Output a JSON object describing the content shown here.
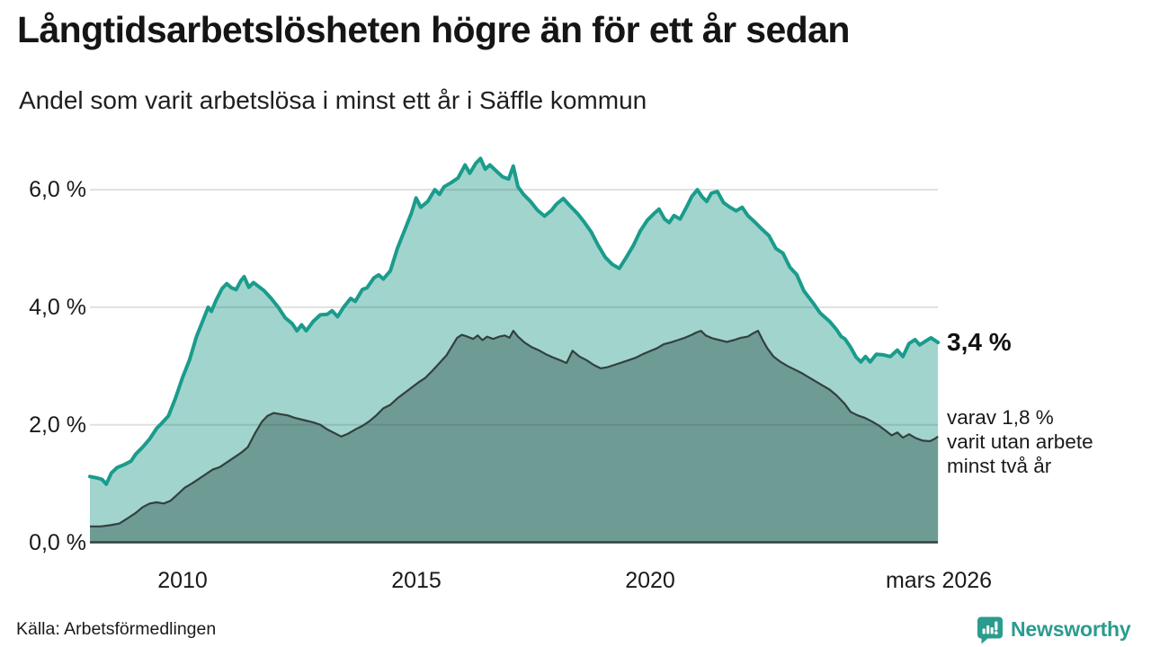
{
  "header": {
    "title": "Långtidsarbetslösheten högre än för ett år sedan",
    "subtitle": "Andel som varit arbetslösa i minst ett år i Säffle kommun"
  },
  "annotations": {
    "value_label": "3,4 %",
    "detail_line1": "varav 1,8 %",
    "detail_line2": "varit utan arbete",
    "detail_line3": "minst två år"
  },
  "footer": {
    "source_label": "Källa: Arbetsförmedlingen",
    "brand_name": "Newsworthy"
  },
  "colors": {
    "teal_line": "#1a9c8c",
    "teal_fill": "#a1d4cd",
    "dark_line": "#32413f",
    "dark_fill": "#6f9b95",
    "grid": "rgba(60,60,60,0.16)",
    "baseline": "#33403e",
    "brand": "#2a9c8e",
    "text": "#1a1a1a"
  },
  "chart_data": {
    "type": "area",
    "title": "Långtidsarbetslösheten högre än för ett år sedan",
    "subtitle": "Andel som varit arbetslösa i minst ett år i Säffle kommun",
    "source": "Källa: Arbetsförmedlingen",
    "legend_position": "none",
    "grid": true,
    "x_axis": {
      "ticks": [
        "2010",
        "2015",
        "2020",
        "mars 2026"
      ],
      "tick_years": [
        2010,
        2015,
        2020,
        2026.17
      ],
      "range": [
        2008.02,
        2026.17
      ]
    },
    "y_axis": {
      "ticks": [
        "0,0 %",
        "2,0 %",
        "4,0 %",
        "6,0 %"
      ],
      "tick_values": [
        0,
        2,
        4,
        6
      ],
      "unit": "%",
      "range": [
        0,
        6.6
      ]
    },
    "series": [
      {
        "name": "Andel arbetslösa minst ett år",
        "end_label": "3,4 %",
        "end_value": 3.4,
        "points": [
          [
            2008.02,
            1.12
          ],
          [
            2008.15,
            1.1
          ],
          [
            2008.28,
            1.07
          ],
          [
            2008.37,
            0.99
          ],
          [
            2008.48,
            1.18
          ],
          [
            2008.6,
            1.27
          ],
          [
            2008.75,
            1.32
          ],
          [
            2008.9,
            1.38
          ],
          [
            2009.0,
            1.5
          ],
          [
            2009.15,
            1.62
          ],
          [
            2009.3,
            1.76
          ],
          [
            2009.45,
            1.94
          ],
          [
            2009.55,
            2.02
          ],
          [
            2009.7,
            2.15
          ],
          [
            2009.85,
            2.45
          ],
          [
            2010.0,
            2.8
          ],
          [
            2010.15,
            3.1
          ],
          [
            2010.3,
            3.5
          ],
          [
            2010.45,
            3.8
          ],
          [
            2010.55,
            4.0
          ],
          [
            2010.62,
            3.93
          ],
          [
            2010.72,
            4.12
          ],
          [
            2010.85,
            4.32
          ],
          [
            2010.95,
            4.4
          ],
          [
            2011.05,
            4.33
          ],
          [
            2011.15,
            4.3
          ],
          [
            2011.25,
            4.45
          ],
          [
            2011.32,
            4.52
          ],
          [
            2011.42,
            4.34
          ],
          [
            2011.52,
            4.42
          ],
          [
            2011.62,
            4.36
          ],
          [
            2011.75,
            4.28
          ],
          [
            2011.9,
            4.15
          ],
          [
            2012.05,
            4.0
          ],
          [
            2012.2,
            3.82
          ],
          [
            2012.35,
            3.72
          ],
          [
            2012.45,
            3.6
          ],
          [
            2012.55,
            3.7
          ],
          [
            2012.65,
            3.6
          ],
          [
            2012.8,
            3.76
          ],
          [
            2012.95,
            3.87
          ],
          [
            2013.1,
            3.88
          ],
          [
            2013.2,
            3.94
          ],
          [
            2013.32,
            3.84
          ],
          [
            2013.45,
            4.0
          ],
          [
            2013.6,
            4.15
          ],
          [
            2013.7,
            4.1
          ],
          [
            2013.85,
            4.3
          ],
          [
            2013.95,
            4.33
          ],
          [
            2014.1,
            4.5
          ],
          [
            2014.2,
            4.55
          ],
          [
            2014.3,
            4.48
          ],
          [
            2014.45,
            4.62
          ],
          [
            2014.6,
            5.0
          ],
          [
            2014.75,
            5.3
          ],
          [
            2014.9,
            5.6
          ],
          [
            2015.0,
            5.86
          ],
          [
            2015.1,
            5.7
          ],
          [
            2015.25,
            5.8
          ],
          [
            2015.4,
            6.0
          ],
          [
            2015.5,
            5.92
          ],
          [
            2015.6,
            6.05
          ],
          [
            2015.75,
            6.12
          ],
          [
            2015.9,
            6.2
          ],
          [
            2016.05,
            6.42
          ],
          [
            2016.15,
            6.28
          ],
          [
            2016.28,
            6.45
          ],
          [
            2016.38,
            6.53
          ],
          [
            2016.48,
            6.35
          ],
          [
            2016.58,
            6.42
          ],
          [
            2016.7,
            6.33
          ],
          [
            2016.85,
            6.22
          ],
          [
            2016.98,
            6.18
          ],
          [
            2017.08,
            6.4
          ],
          [
            2017.18,
            6.05
          ],
          [
            2017.3,
            5.92
          ],
          [
            2017.45,
            5.8
          ],
          [
            2017.6,
            5.65
          ],
          [
            2017.75,
            5.55
          ],
          [
            2017.9,
            5.65
          ],
          [
            2018.0,
            5.75
          ],
          [
            2018.15,
            5.85
          ],
          [
            2018.3,
            5.72
          ],
          [
            2018.45,
            5.6
          ],
          [
            2018.6,
            5.45
          ],
          [
            2018.75,
            5.28
          ],
          [
            2018.9,
            5.05
          ],
          [
            2019.05,
            4.85
          ],
          [
            2019.2,
            4.73
          ],
          [
            2019.35,
            4.66
          ],
          [
            2019.5,
            4.85
          ],
          [
            2019.65,
            5.05
          ],
          [
            2019.8,
            5.3
          ],
          [
            2019.95,
            5.48
          ],
          [
            2020.1,
            5.6
          ],
          [
            2020.2,
            5.67
          ],
          [
            2020.32,
            5.5
          ],
          [
            2020.42,
            5.44
          ],
          [
            2020.52,
            5.56
          ],
          [
            2020.65,
            5.5
          ],
          [
            2020.8,
            5.72
          ],
          [
            2020.9,
            5.88
          ],
          [
            2021.02,
            6.0
          ],
          [
            2021.12,
            5.88
          ],
          [
            2021.22,
            5.8
          ],
          [
            2021.32,
            5.94
          ],
          [
            2021.45,
            5.97
          ],
          [
            2021.58,
            5.78
          ],
          [
            2021.72,
            5.7
          ],
          [
            2021.85,
            5.64
          ],
          [
            2021.98,
            5.7
          ],
          [
            2022.1,
            5.56
          ],
          [
            2022.25,
            5.45
          ],
          [
            2022.4,
            5.33
          ],
          [
            2022.55,
            5.22
          ],
          [
            2022.7,
            5.0
          ],
          [
            2022.85,
            4.92
          ],
          [
            2023.0,
            4.68
          ],
          [
            2023.15,
            4.55
          ],
          [
            2023.3,
            4.28
          ],
          [
            2023.5,
            4.07
          ],
          [
            2023.65,
            3.9
          ],
          [
            2023.85,
            3.76
          ],
          [
            2024.0,
            3.62
          ],
          [
            2024.1,
            3.5
          ],
          [
            2024.18,
            3.46
          ],
          [
            2024.3,
            3.32
          ],
          [
            2024.42,
            3.15
          ],
          [
            2024.52,
            3.07
          ],
          [
            2024.62,
            3.16
          ],
          [
            2024.72,
            3.07
          ],
          [
            2024.85,
            3.2
          ],
          [
            2025.0,
            3.19
          ],
          [
            2025.15,
            3.16
          ],
          [
            2025.3,
            3.27
          ],
          [
            2025.42,
            3.16
          ],
          [
            2025.55,
            3.38
          ],
          [
            2025.68,
            3.45
          ],
          [
            2025.78,
            3.36
          ],
          [
            2025.9,
            3.42
          ],
          [
            2026.02,
            3.48
          ],
          [
            2026.17,
            3.4
          ]
        ]
      },
      {
        "name": "Andel arbetslösa minst två år",
        "end_label": "varav 1,8 % varit utan arbete minst två år",
        "end_value": 1.8,
        "points": [
          [
            2008.02,
            0.27
          ],
          [
            2008.25,
            0.27
          ],
          [
            2008.45,
            0.29
          ],
          [
            2008.65,
            0.32
          ],
          [
            2008.85,
            0.42
          ],
          [
            2009.0,
            0.5
          ],
          [
            2009.15,
            0.6
          ],
          [
            2009.3,
            0.66
          ],
          [
            2009.45,
            0.68
          ],
          [
            2009.6,
            0.66
          ],
          [
            2009.75,
            0.71
          ],
          [
            2009.9,
            0.82
          ],
          [
            2010.05,
            0.93
          ],
          [
            2010.2,
            1.0
          ],
          [
            2010.35,
            1.08
          ],
          [
            2010.5,
            1.16
          ],
          [
            2010.65,
            1.24
          ],
          [
            2010.8,
            1.28
          ],
          [
            2010.95,
            1.36
          ],
          [
            2011.1,
            1.44
          ],
          [
            2011.25,
            1.52
          ],
          [
            2011.4,
            1.62
          ],
          [
            2011.55,
            1.85
          ],
          [
            2011.7,
            2.05
          ],
          [
            2011.82,
            2.15
          ],
          [
            2011.95,
            2.2
          ],
          [
            2012.1,
            2.18
          ],
          [
            2012.25,
            2.16
          ],
          [
            2012.4,
            2.12
          ],
          [
            2012.6,
            2.08
          ],
          [
            2012.8,
            2.04
          ],
          [
            2012.95,
            2.0
          ],
          [
            2013.1,
            1.92
          ],
          [
            2013.25,
            1.86
          ],
          [
            2013.4,
            1.8
          ],
          [
            2013.55,
            1.85
          ],
          [
            2013.7,
            1.92
          ],
          [
            2013.85,
            1.98
          ],
          [
            2014.0,
            2.06
          ],
          [
            2014.15,
            2.16
          ],
          [
            2014.3,
            2.28
          ],
          [
            2014.45,
            2.34
          ],
          [
            2014.6,
            2.45
          ],
          [
            2014.75,
            2.54
          ],
          [
            2014.9,
            2.63
          ],
          [
            2015.05,
            2.72
          ],
          [
            2015.2,
            2.8
          ],
          [
            2015.35,
            2.92
          ],
          [
            2015.5,
            3.05
          ],
          [
            2015.65,
            3.18
          ],
          [
            2015.78,
            3.35
          ],
          [
            2015.88,
            3.48
          ],
          [
            2015.98,
            3.53
          ],
          [
            2016.1,
            3.5
          ],
          [
            2016.22,
            3.46
          ],
          [
            2016.32,
            3.52
          ],
          [
            2016.42,
            3.44
          ],
          [
            2016.52,
            3.5
          ],
          [
            2016.65,
            3.46
          ],
          [
            2016.78,
            3.5
          ],
          [
            2016.9,
            3.52
          ],
          [
            2017.0,
            3.48
          ],
          [
            2017.08,
            3.6
          ],
          [
            2017.18,
            3.5
          ],
          [
            2017.32,
            3.4
          ],
          [
            2017.48,
            3.32
          ],
          [
            2017.62,
            3.27
          ],
          [
            2017.78,
            3.2
          ],
          [
            2017.92,
            3.15
          ],
          [
            2018.08,
            3.1
          ],
          [
            2018.22,
            3.05
          ],
          [
            2018.35,
            3.26
          ],
          [
            2018.5,
            3.16
          ],
          [
            2018.65,
            3.1
          ],
          [
            2018.8,
            3.02
          ],
          [
            2018.95,
            2.96
          ],
          [
            2019.1,
            2.98
          ],
          [
            2019.25,
            3.02
          ],
          [
            2019.4,
            3.06
          ],
          [
            2019.55,
            3.1
          ],
          [
            2019.7,
            3.14
          ],
          [
            2019.85,
            3.2
          ],
          [
            2020.0,
            3.25
          ],
          [
            2020.15,
            3.3
          ],
          [
            2020.3,
            3.37
          ],
          [
            2020.45,
            3.4
          ],
          [
            2020.6,
            3.44
          ],
          [
            2020.75,
            3.48
          ],
          [
            2020.9,
            3.53
          ],
          [
            2021.0,
            3.57
          ],
          [
            2021.1,
            3.6
          ],
          [
            2021.2,
            3.52
          ],
          [
            2021.35,
            3.47
          ],
          [
            2021.5,
            3.44
          ],
          [
            2021.65,
            3.41
          ],
          [
            2021.8,
            3.44
          ],
          [
            2021.95,
            3.48
          ],
          [
            2022.1,
            3.5
          ],
          [
            2022.22,
            3.56
          ],
          [
            2022.32,
            3.6
          ],
          [
            2022.42,
            3.44
          ],
          [
            2022.52,
            3.3
          ],
          [
            2022.65,
            3.16
          ],
          [
            2022.8,
            3.07
          ],
          [
            2022.95,
            3.0
          ],
          [
            2023.1,
            2.94
          ],
          [
            2023.25,
            2.88
          ],
          [
            2023.4,
            2.81
          ],
          [
            2023.55,
            2.74
          ],
          [
            2023.7,
            2.67
          ],
          [
            2023.85,
            2.6
          ],
          [
            2024.0,
            2.5
          ],
          [
            2024.17,
            2.36
          ],
          [
            2024.3,
            2.22
          ],
          [
            2024.45,
            2.16
          ],
          [
            2024.6,
            2.12
          ],
          [
            2024.75,
            2.06
          ],
          [
            2024.9,
            1.99
          ],
          [
            2025.05,
            1.9
          ],
          [
            2025.18,
            1.82
          ],
          [
            2025.3,
            1.87
          ],
          [
            2025.42,
            1.78
          ],
          [
            2025.55,
            1.84
          ],
          [
            2025.7,
            1.77
          ],
          [
            2025.85,
            1.73
          ],
          [
            2026.0,
            1.72
          ],
          [
            2026.1,
            1.76
          ],
          [
            2026.17,
            1.8
          ]
        ]
      }
    ]
  }
}
